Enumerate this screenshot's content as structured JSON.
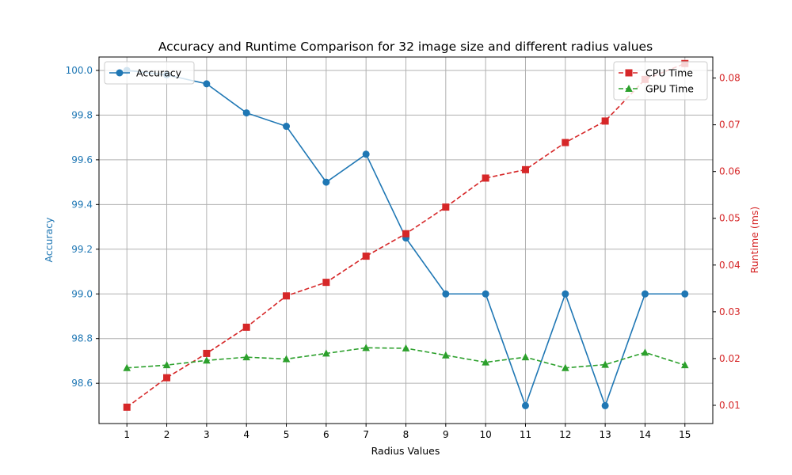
{
  "chart_data": {
    "type": "line",
    "title": "Accuracy and Runtime Comparison for 32 image size and different radius values",
    "xlabel": "Radius Values",
    "ylabel_left": "Accuracy",
    "ylabel_right": "Runtime (ms)",
    "x": [
      1,
      2,
      3,
      4,
      5,
      6,
      7,
      8,
      9,
      10,
      11,
      12,
      13,
      14,
      15
    ],
    "x_tick_labels": [
      "1",
      "2",
      "3",
      "4",
      "5",
      "6",
      "7",
      "8",
      "9",
      "10",
      "11",
      "12",
      "13",
      "14",
      "15"
    ],
    "xlim": [
      0.3,
      15.7
    ],
    "y_left_lim": [
      98.42,
      100.06
    ],
    "y_left_ticks": [
      98.6,
      98.8,
      99.0,
      99.2,
      99.4,
      99.6,
      99.8,
      100.0
    ],
    "y_left_tick_labels": [
      "98.6",
      "98.8",
      "99.0",
      "99.2",
      "99.4",
      "99.6",
      "99.8",
      "100.0"
    ],
    "y_right_lim": [
      0.0061,
      0.0845
    ],
    "y_right_ticks": [
      0.01,
      0.02,
      0.03,
      0.04,
      0.05,
      0.06,
      0.07,
      0.08
    ],
    "y_right_tick_labels": [
      "0.01",
      "0.02",
      "0.03",
      "0.04",
      "0.05",
      "0.06",
      "0.07",
      "0.08"
    ],
    "grid": true,
    "left_axis_color": "#1f77b4",
    "right_axis_color": "#d62728",
    "series": [
      {
        "name": "Accuracy",
        "axis": "left",
        "color": "#1f77b4",
        "linestyle": "solid",
        "marker": "circle",
        "values": [
          100.0,
          99.98,
          99.94,
          99.81,
          99.75,
          99.5,
          99.625,
          99.25,
          99.0,
          99.0,
          98.5,
          99.0,
          98.5,
          99.0,
          99.0
        ]
      },
      {
        "name": "CPU Time",
        "axis": "right",
        "color": "#d62728",
        "linestyle": "dashed",
        "marker": "square",
        "values": [
          0.0096,
          0.0159,
          0.0211,
          0.0267,
          0.0334,
          0.0363,
          0.0419,
          0.0467,
          0.0524,
          0.0586,
          0.0604,
          0.0662,
          0.0708,
          0.0797,
          0.0831
        ]
      },
      {
        "name": "GPU Time",
        "axis": "right",
        "color": "#2ca02c",
        "linestyle": "dashed",
        "marker": "triangle",
        "values": [
          0.018,
          0.0186,
          0.0196,
          0.0203,
          0.0199,
          0.0211,
          0.0223,
          0.0222,
          0.0207,
          0.0192,
          0.0203,
          0.018,
          0.0187,
          0.0213,
          0.0186
        ]
      }
    ],
    "legend_left": {
      "placement": "top-left",
      "entries": [
        "Accuracy"
      ]
    },
    "legend_right": {
      "placement": "top-right",
      "entries": [
        "CPU Time",
        "GPU Time"
      ]
    }
  }
}
